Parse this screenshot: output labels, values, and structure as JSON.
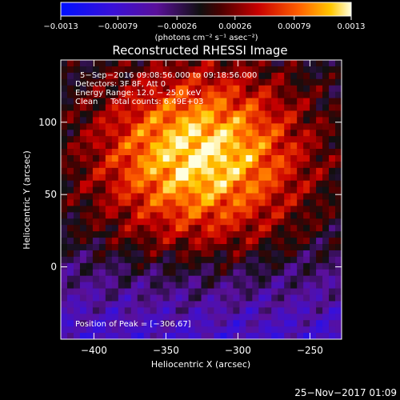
{
  "chart_data": {
    "type": "heatmap",
    "title": "Reconstructed RHESSI Image",
    "xlabel": "Heliocentric X (arcsec)",
    "ylabel": "Heliocentric Y (arcsec)",
    "xlim": [
      -423,
      -228
    ],
    "ylim": [
      -50,
      143
    ],
    "x_ticks": [
      -400,
      -350,
      -300,
      -250
    ],
    "x_tick_labels": [
      "−400",
      "−350",
      "−300",
      "−250"
    ],
    "y_ticks": [
      0,
      50,
      100
    ],
    "y_tick_labels": [
      "0",
      "50",
      "100"
    ],
    "colorbar": {
      "min": -0.0013,
      "max": 0.0013,
      "ticks": [
        -0.0013,
        -0.00079,
        -0.00026,
        0.00026,
        0.00079,
        0.0013
      ],
      "tick_labels": [
        "−0.0013",
        "−0.00079",
        "−0.00026",
        "0.00026",
        "0.00079",
        "0.0013"
      ],
      "unit_label": "(photons cm⁻² s⁻¹ asec⁻²)"
    },
    "annotations": [
      "5−Sep−2016 09:08:56.000 to 09:18:56.000",
      "Detectors: 3F 8F, Att 0",
      "Energy Range: 12.0 − 25.0 keV",
      "Clean     Total counts: 6.49E+03"
    ],
    "peak": {
      "x": -306,
      "y": 67,
      "label": "Position of Peak = [−306,67]"
    },
    "grid": false
  },
  "footer": {
    "date": "25−Nov−2017 01:09"
  }
}
